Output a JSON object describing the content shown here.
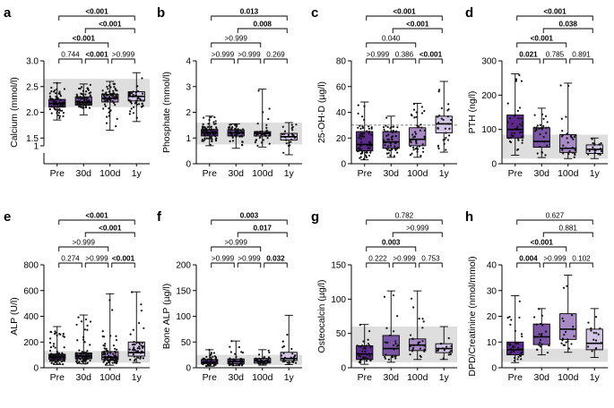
{
  "colors": {
    "Pre": "#5b2a8c",
    "30d": "#7b56a6",
    "100d": "#a78ac6",
    "1y": "#d2c4e3",
    "normal_band": "#dedede",
    "dots": "#111111"
  },
  "chart_data": [
    {
      "panel": "a",
      "type": "box",
      "ylabel": "Calcium (mmol/l)",
      "categories": [
        "Pre",
        "30d",
        "100d",
        "1y"
      ],
      "ylim": [
        1.0,
        3.0
      ],
      "yticks": [
        1.0,
        1.5,
        2.0,
        2.5,
        3.0
      ],
      "ytick_labels": [
        "1",
        "1.5",
        "2.0",
        "2.5",
        "3.0"
      ],
      "axis_break": true,
      "axis_start": 1.35,
      "normal_range": [
        2.1,
        2.65
      ],
      "boxes": [
        {
          "min": 1.85,
          "q1": 2.1,
          "median": 2.17,
          "q3": 2.25,
          "max": 2.57,
          "n": 80
        },
        {
          "min": 1.95,
          "q1": 2.14,
          "median": 2.2,
          "q3": 2.3,
          "max": 2.55,
          "n": 75
        },
        {
          "min": 1.65,
          "q1": 2.2,
          "median": 2.27,
          "q3": 2.35,
          "max": 2.6,
          "n": 70
        },
        {
          "min": 1.82,
          "q1": 2.22,
          "median": 2.31,
          "q3": 2.4,
          "max": 2.77,
          "n": 45
        }
      ],
      "comparisons": [
        {
          "a": 0,
          "b": 3,
          "text": "<0.001",
          "bold": true
        },
        {
          "a": 1,
          "b": 3,
          "text": "<0.001",
          "bold": true
        },
        {
          "a": 0,
          "b": 2,
          "text": "<0.001",
          "bold": true
        },
        {
          "a": 0,
          "b": 1,
          "text": "0.744",
          "bold": false
        },
        {
          "a": 1,
          "b": 2,
          "text": "<0.001",
          "bold": true
        },
        {
          "a": 2,
          "b": 3,
          "text": ">0.999",
          "bold": false
        }
      ]
    },
    {
      "panel": "b",
      "type": "box",
      "ylabel": "Phosphate (mmol/l)",
      "categories": [
        "Pre",
        "30d",
        "100d",
        "1y"
      ],
      "ylim": [
        0,
        4
      ],
      "yticks": [
        0,
        1,
        2,
        3,
        4
      ],
      "ytick_labels": [
        "0",
        "1",
        "2",
        "3",
        "4"
      ],
      "normal_range": [
        0.75,
        1.6
      ],
      "boxes": [
        {
          "min": 0.7,
          "q1": 1.08,
          "median": 1.2,
          "q3": 1.33,
          "max": 1.85,
          "n": 80
        },
        {
          "min": 0.6,
          "q1": 1.08,
          "median": 1.2,
          "q3": 1.32,
          "max": 1.55,
          "n": 60
        },
        {
          "min": 0.65,
          "q1": 1.08,
          "median": 1.18,
          "q3": 1.25,
          "max": 2.9,
          "n": 50
        },
        {
          "min": 0.35,
          "q1": 0.92,
          "median": 1.05,
          "q3": 1.18,
          "max": 1.6,
          "n": 25
        }
      ],
      "comparisons": [
        {
          "a": 0,
          "b": 3,
          "text": "0.013",
          "bold": true
        },
        {
          "a": 1,
          "b": 3,
          "text": "0.008",
          "bold": true
        },
        {
          "a": 0,
          "b": 2,
          "text": ">0.999",
          "bold": false
        },
        {
          "a": 0,
          "b": 1,
          "text": ">0.999",
          "bold": false
        },
        {
          "a": 1,
          "b": 2,
          "text": ">0.999",
          "bold": false
        },
        {
          "a": 2,
          "b": 3,
          "text": "0.269",
          "bold": false
        }
      ]
    },
    {
      "panel": "c",
      "type": "box",
      "ylabel": "25-OH-D (µg/l)",
      "categories": [
        "Pre",
        "30d",
        "100d",
        "1y"
      ],
      "ylim": [
        0,
        80
      ],
      "yticks": [
        0,
        20,
        40,
        60,
        80
      ],
      "ytick_labels": [
        "0",
        "20",
        "40",
        "60",
        "80"
      ],
      "reference_line": 30,
      "boxes": [
        {
          "min": 3,
          "q1": 10,
          "median": 15,
          "q3": 25,
          "max": 48,
          "n": 70
        },
        {
          "min": 5,
          "q1": 12,
          "median": 17,
          "q3": 25,
          "max": 37,
          "n": 60
        },
        {
          "min": 5,
          "q1": 14,
          "median": 19,
          "q3": 28,
          "max": 47,
          "n": 45
        },
        {
          "min": 9,
          "q1": 24,
          "median": 31,
          "q3": 37,
          "max": 64,
          "n": 30
        }
      ],
      "comparisons": [
        {
          "a": 0,
          "b": 3,
          "text": "<0.001",
          "bold": true
        },
        {
          "a": 1,
          "b": 3,
          "text": "<0.001",
          "bold": true
        },
        {
          "a": 0,
          "b": 2,
          "text": "0.040",
          "bold": false
        },
        {
          "a": 0,
          "b": 1,
          "text": ">0.999",
          "bold": false
        },
        {
          "a": 1,
          "b": 2,
          "text": "0.386",
          "bold": false
        },
        {
          "a": 2,
          "b": 3,
          "text": "<0.001",
          "bold": true
        }
      ]
    },
    {
      "panel": "d",
      "type": "box",
      "ylabel": "PTH (ng/l)",
      "categories": [
        "Pre",
        "30d",
        "100d",
        "1y"
      ],
      "ylim": [
        0,
        300
      ],
      "yticks": [
        0,
        100,
        200,
        300
      ],
      "ytick_labels": [
        "0",
        "100",
        "200",
        "300"
      ],
      "normal_range": [
        15,
        85
      ],
      "boxes": [
        {
          "min": 25,
          "q1": 75,
          "median": 100,
          "q3": 142,
          "max": 262,
          "n": 40
        },
        {
          "min": 18,
          "q1": 48,
          "median": 65,
          "q3": 105,
          "max": 162,
          "n": 30
        },
        {
          "min": 15,
          "q1": 33,
          "median": 45,
          "q3": 85,
          "max": 235,
          "n": 30
        },
        {
          "min": 15,
          "q1": 30,
          "median": 42,
          "q3": 55,
          "max": 75,
          "n": 18
        }
      ],
      "comparisons": [
        {
          "a": 0,
          "b": 3,
          "text": "<0.001",
          "bold": true
        },
        {
          "a": 1,
          "b": 3,
          "text": "0.038",
          "bold": true
        },
        {
          "a": 0,
          "b": 2,
          "text": "<0.001",
          "bold": true
        },
        {
          "a": 0,
          "b": 1,
          "text": "0.021",
          "bold": true
        },
        {
          "a": 1,
          "b": 2,
          "text": "0.785",
          "bold": false
        },
        {
          "a": 2,
          "b": 3,
          "text": "0.891",
          "bold": false
        }
      ]
    },
    {
      "panel": "e",
      "type": "box",
      "ylabel": "ALP (U/l)",
      "categories": [
        "Pre",
        "30d",
        "100d",
        "1y"
      ],
      "ylim": [
        0,
        800
      ],
      "yticks": [
        0,
        200,
        400,
        600,
        800
      ],
      "ytick_labels": [
        "0",
        "200",
        "400",
        "600",
        "800"
      ],
      "normal_range": [
        40,
        130
      ],
      "boxes": [
        {
          "min": 25,
          "q1": 65,
          "median": 82,
          "q3": 105,
          "max": 320,
          "n": 90
        },
        {
          "min": 30,
          "q1": 70,
          "median": 90,
          "q3": 115,
          "max": 410,
          "n": 85
        },
        {
          "min": 20,
          "q1": 62,
          "median": 82,
          "q3": 125,
          "max": 575,
          "n": 80
        },
        {
          "min": 40,
          "q1": 90,
          "median": 118,
          "q3": 200,
          "max": 590,
          "n": 45
        }
      ],
      "comparisons": [
        {
          "a": 0,
          "b": 3,
          "text": "<0.001",
          "bold": true
        },
        {
          "a": 1,
          "b": 3,
          "text": "<0.001",
          "bold": true
        },
        {
          "a": 0,
          "b": 2,
          "text": ">0.999",
          "bold": false
        },
        {
          "a": 0,
          "b": 1,
          "text": "0.274",
          "bold": false
        },
        {
          "a": 1,
          "b": 2,
          "text": ">0.999",
          "bold": false
        },
        {
          "a": 2,
          "b": 3,
          "text": "<0.001",
          "bold": true
        }
      ]
    },
    {
      "panel": "f",
      "type": "box",
      "ylabel": "Bone ALP (µg/l)",
      "categories": [
        "Pre",
        "30d",
        "100d",
        "1y"
      ],
      "ylim": [
        0,
        200
      ],
      "yticks": [
        0,
        50,
        100,
        150,
        200
      ],
      "ytick_labels": [
        "0",
        "50",
        "100",
        "150",
        "200"
      ],
      "normal_range": [
        5,
        25
      ],
      "boxes": [
        {
          "min": 3,
          "q1": 8,
          "median": 11,
          "q3": 16,
          "max": 35,
          "n": 50
        },
        {
          "min": 4,
          "q1": 8,
          "median": 12,
          "q3": 17,
          "max": 52,
          "n": 45
        },
        {
          "min": 5,
          "q1": 9,
          "median": 13,
          "q3": 18,
          "max": 35,
          "n": 40
        },
        {
          "min": 6,
          "q1": 14,
          "median": 18,
          "q3": 30,
          "max": 102,
          "n": 25
        }
      ],
      "comparisons": [
        {
          "a": 0,
          "b": 3,
          "text": "0.003",
          "bold": true
        },
        {
          "a": 1,
          "b": 3,
          "text": "0.017",
          "bold": true
        },
        {
          "a": 0,
          "b": 2,
          "text": ">0.999",
          "bold": false
        },
        {
          "a": 0,
          "b": 1,
          "text": ">0.999",
          "bold": false
        },
        {
          "a": 1,
          "b": 2,
          "text": ">0.999",
          "bold": false
        },
        {
          "a": 2,
          "b": 3,
          "text": "0.032",
          "bold": true
        }
      ]
    },
    {
      "panel": "g",
      "type": "box",
      "ylabel": "Osteocalcin (µg/l)",
      "categories": [
        "Pre",
        "30d",
        "100d",
        "1y"
      ],
      "ylim": [
        0,
        150
      ],
      "yticks": [
        0,
        50,
        100,
        150
      ],
      "ytick_labels": [
        "0",
        "50",
        "100",
        "150"
      ],
      "normal_range": [
        8,
        60
      ],
      "boxes": [
        {
          "min": 5,
          "q1": 12,
          "median": 20,
          "q3": 32,
          "max": 63,
          "n": 40
        },
        {
          "min": 8,
          "q1": 18,
          "median": 28,
          "q3": 47,
          "max": 112,
          "n": 25
        },
        {
          "min": 12,
          "q1": 25,
          "median": 33,
          "q3": 42,
          "max": 112,
          "n": 25
        },
        {
          "min": 12,
          "q1": 22,
          "median": 28,
          "q3": 35,
          "max": 60,
          "n": 15
        }
      ],
      "comparisons": [
        {
          "a": 0,
          "b": 3,
          "text": "0.782",
          "bold": false
        },
        {
          "a": 1,
          "b": 3,
          "text": ">0.999",
          "bold": false
        },
        {
          "a": 0,
          "b": 2,
          "text": "0.003",
          "bold": true
        },
        {
          "a": 0,
          "b": 1,
          "text": "0.222",
          "bold": false
        },
        {
          "a": 1,
          "b": 2,
          "text": ">0.999",
          "bold": false
        },
        {
          "a": 2,
          "b": 3,
          "text": "0.753",
          "bold": false
        }
      ]
    },
    {
      "panel": "h",
      "type": "box",
      "ylabel": "DPD/Creatinine (nmol/mmol)",
      "categories": [
        "Pre",
        "30d",
        "100d",
        "1y"
      ],
      "ylim": [
        0,
        40
      ],
      "yticks": [
        0,
        10,
        20,
        30,
        40
      ],
      "ytick_labels": [
        "0",
        "10",
        "20",
        "30",
        "40"
      ],
      "normal_range": [
        2.3,
        7.4
      ],
      "boxes": [
        {
          "min": 2,
          "q1": 5,
          "median": 7,
          "q3": 10,
          "max": 28,
          "n": 35
        },
        {
          "min": 5,
          "q1": 9,
          "median": 12,
          "q3": 17,
          "max": 23,
          "n": 22
        },
        {
          "min": 6,
          "q1": 11,
          "median": 15,
          "q3": 21,
          "max": 36,
          "n": 20
        },
        {
          "min": 4,
          "q1": 7,
          "median": 9.5,
          "q3": 15,
          "max": 23,
          "n": 15
        }
      ],
      "comparisons": [
        {
          "a": 0,
          "b": 3,
          "text": "0.627",
          "bold": false
        },
        {
          "a": 1,
          "b": 3,
          "text": "0.881",
          "bold": false
        },
        {
          "a": 0,
          "b": 2,
          "text": "<0.001",
          "bold": true
        },
        {
          "a": 0,
          "b": 1,
          "text": "0.004",
          "bold": true
        },
        {
          "a": 1,
          "b": 2,
          "text": ">0.999",
          "bold": false
        },
        {
          "a": 2,
          "b": 3,
          "text": "0.102",
          "bold": false
        }
      ]
    }
  ]
}
